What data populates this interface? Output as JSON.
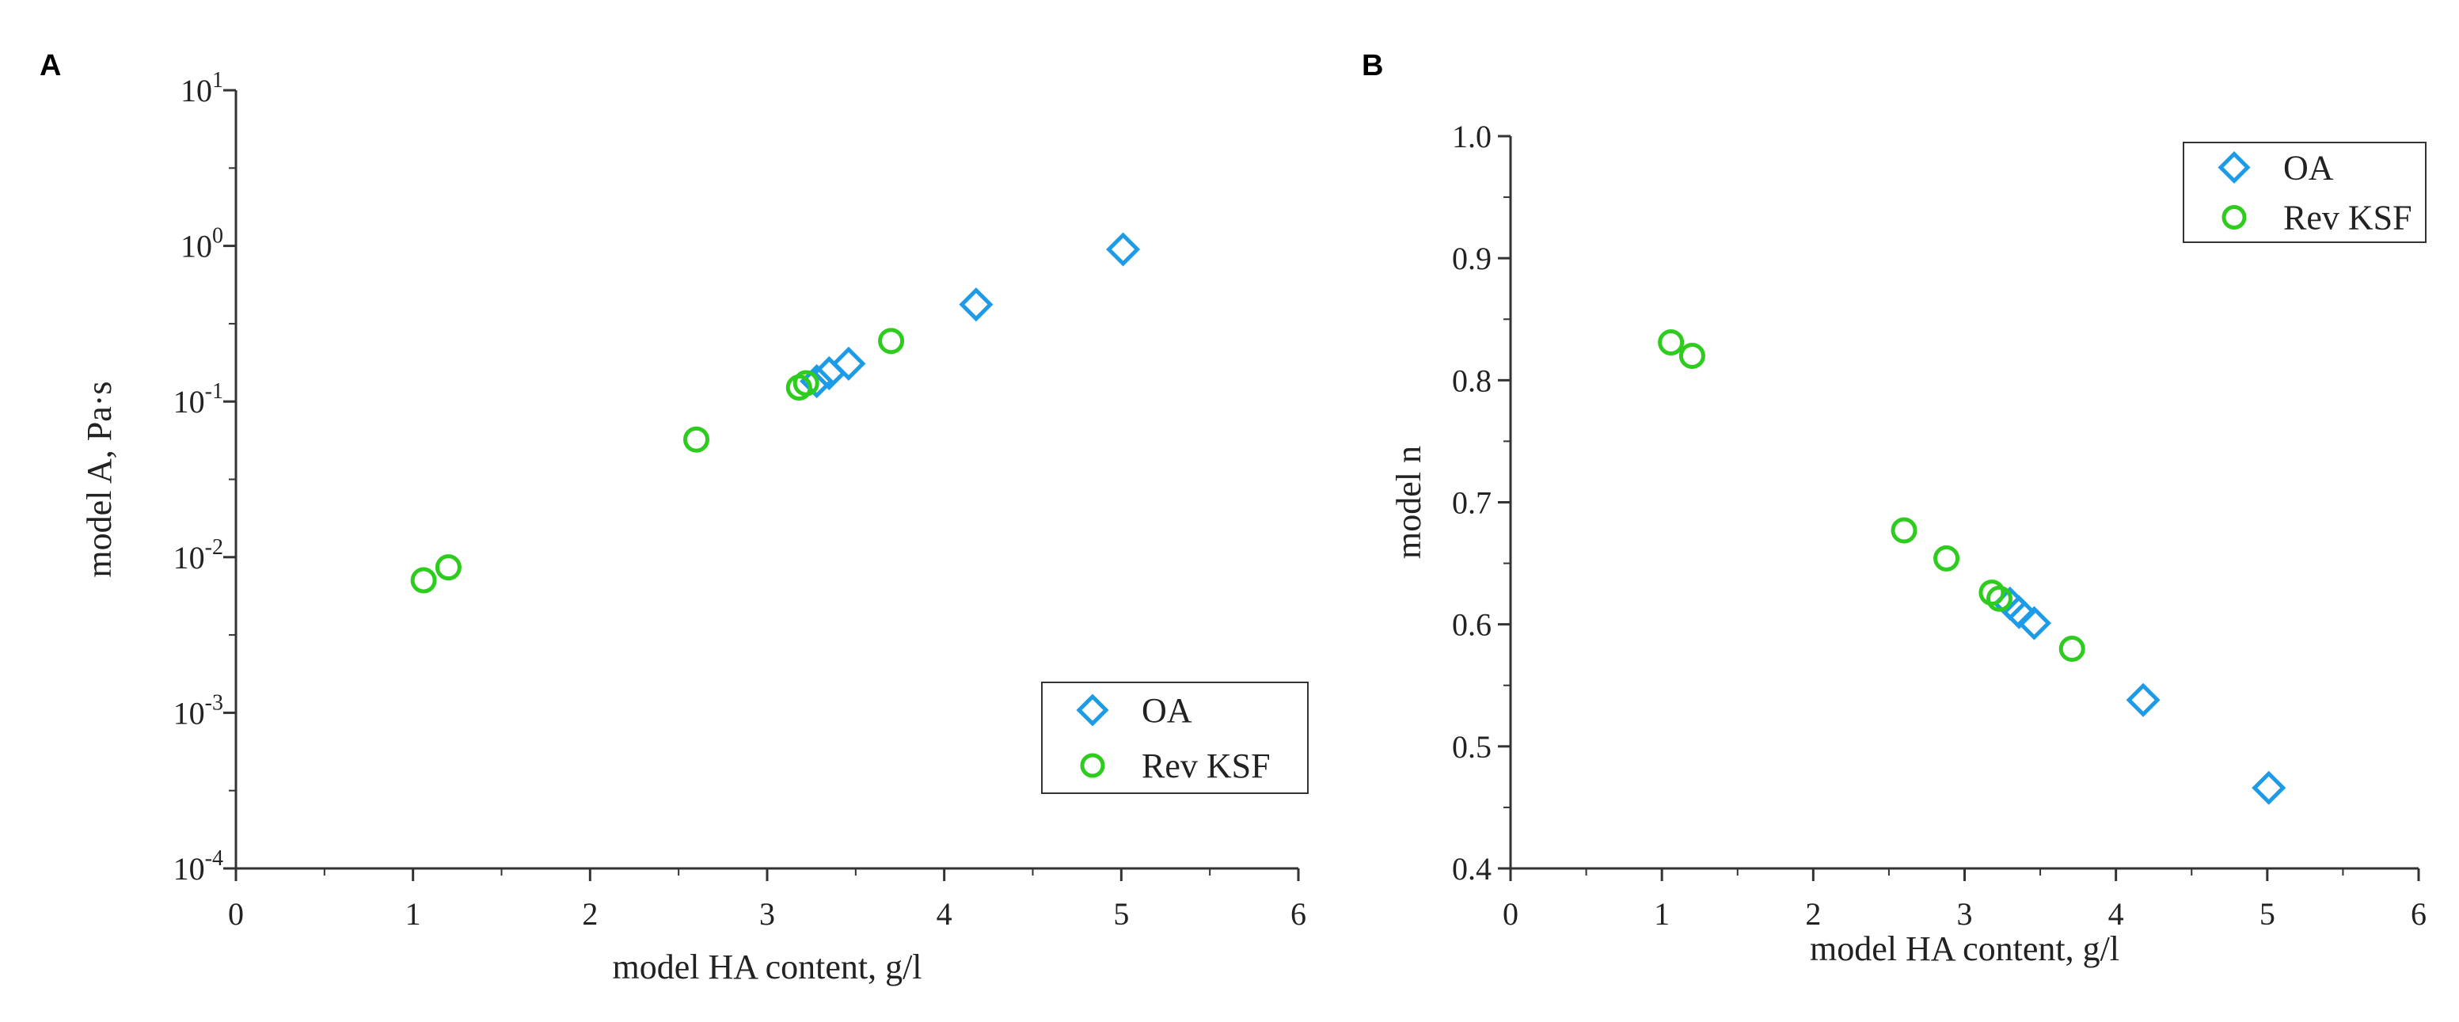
{
  "chart_data": [
    {
      "panel": "A",
      "type": "scatter",
      "xlabel": "model HA content, g/l",
      "ylabel": "model A, Pa·s",
      "xlim": [
        0,
        6
      ],
      "ylim": [
        0.0001,
        10
      ],
      "yscale": "log",
      "x_ticks": [
        0,
        1,
        2,
        3,
        4,
        5,
        6
      ],
      "y_ticks": [
        {
          "base": "10",
          "exp": "-4",
          "value": 0.0001
        },
        {
          "base": "10",
          "exp": "-3",
          "value": 0.001
        },
        {
          "base": "10",
          "exp": "-2",
          "value": 0.01
        },
        {
          "base": "10",
          "exp": "-1",
          "value": 0.1
        },
        {
          "base": "10",
          "exp": "0",
          "value": 1
        },
        {
          "base": "10",
          "exp": "1",
          "value": 10
        }
      ],
      "legend_position": "bottom-right",
      "series": [
        {
          "name": "OA",
          "marker": "diamond",
          "color": "#1e9be6",
          "points": [
            {
              "x": 3.28,
              "y": 0.135
            },
            {
              "x": 3.35,
              "y": 0.152
            },
            {
              "x": 3.46,
              "y": 0.175
            },
            {
              "x": 4.18,
              "y": 0.42
            },
            {
              "x": 5.01,
              "y": 0.95
            }
          ]
        },
        {
          "name": "Rev KSF",
          "marker": "circle",
          "color": "#2ecc1e",
          "points": [
            {
              "x": 1.06,
              "y": 0.0071
            },
            {
              "x": 1.2,
              "y": 0.0086
            },
            {
              "x": 2.6,
              "y": 0.057
            },
            {
              "x": 3.18,
              "y": 0.123
            },
            {
              "x": 3.22,
              "y": 0.131
            },
            {
              "x": 3.7,
              "y": 0.245
            }
          ]
        }
      ]
    },
    {
      "panel": "B",
      "type": "scatter",
      "xlabel": "model HA content, g/l",
      "ylabel": "model n",
      "xlim": [
        0,
        6
      ],
      "ylim": [
        0.4,
        1.0
      ],
      "yscale": "linear",
      "x_ticks": [
        0,
        1,
        2,
        3,
        4,
        5,
        6
      ],
      "y_ticks": [
        0.4,
        0.5,
        0.6,
        0.7,
        0.8,
        0.9,
        1.0
      ],
      "y_tick_format": 1,
      "legend_position": "top-right",
      "series": [
        {
          "name": "OA",
          "marker": "diamond",
          "color": "#1e9be6",
          "points": [
            {
              "x": 3.3,
              "y": 0.617
            },
            {
              "x": 3.36,
              "y": 0.61
            },
            {
              "x": 3.46,
              "y": 0.601
            },
            {
              "x": 4.18,
              "y": 0.538
            },
            {
              "x": 5.01,
              "y": 0.466
            }
          ]
        },
        {
          "name": "Rev KSF",
          "marker": "circle",
          "color": "#2ecc1e",
          "points": [
            {
              "x": 1.06,
              "y": 0.831
            },
            {
              "x": 1.2,
              "y": 0.82
            },
            {
              "x": 2.6,
              "y": 0.677
            },
            {
              "x": 2.88,
              "y": 0.654
            },
            {
              "x": 3.18,
              "y": 0.626
            },
            {
              "x": 3.23,
              "y": 0.621
            },
            {
              "x": 3.71,
              "y": 0.58
            }
          ]
        }
      ]
    }
  ]
}
